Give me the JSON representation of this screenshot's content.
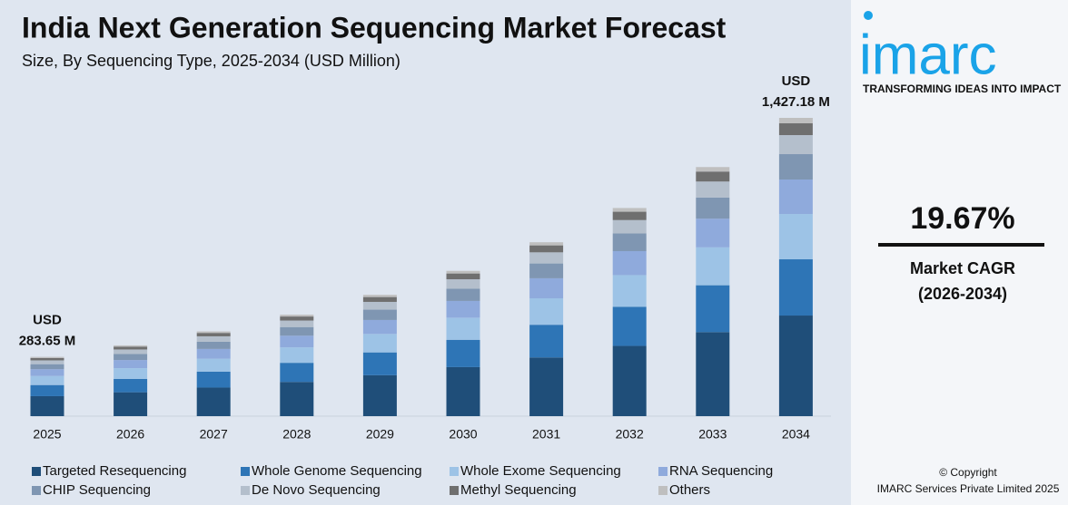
{
  "chart_data": {
    "type": "stacked_bar",
    "title": "India Next Generation Sequencing Market Forecast",
    "subtitle": "Size, By Sequencing Type, 2025-2034 (USD Million)",
    "categories": [
      "2025",
      "2026",
      "2027",
      "2028",
      "2029",
      "2030",
      "2031",
      "2032",
      "2033",
      "2034"
    ],
    "series": [
      {
        "name": "Targeted Resequencing",
        "color": "#1f4e79",
        "values": [
          95.6,
          114.3,
          136.8,
          163.8,
          195.8,
          234.6,
          280.7,
          336.0,
          402.0,
          481.4
        ]
      },
      {
        "name": "Whole Genome Sequencing",
        "color": "#2e75b6",
        "values": [
          53.3,
          63.7,
          76.3,
          91.4,
          109.2,
          130.8,
          156.6,
          187.4,
          224.3,
          269.0
        ]
      },
      {
        "name": "Whole Exome Sequencing",
        "color": "#9dc3e6",
        "values": [
          43.1,
          51.5,
          61.7,
          73.9,
          88.3,
          105.8,
          126.6,
          151.5,
          181.3,
          216.9
        ]
      },
      {
        "name": "RNA Sequencing",
        "color": "#8faadc",
        "values": [
          32.6,
          39.0,
          46.7,
          55.9,
          66.8,
          80.0,
          95.8,
          114.7,
          137.2,
          164.8
        ]
      },
      {
        "name": "CHIP Sequencing",
        "color": "#7f96b2",
        "values": [
          24.1,
          28.8,
          34.5,
          41.3,
          49.4,
          59.2,
          70.8,
          84.7,
          101.4,
          121.5
        ]
      },
      {
        "name": "De Novo Sequencing",
        "color": "#b4bfcc",
        "values": [
          18.2,
          21.7,
          26.0,
          31.1,
          37.2,
          44.5,
          53.3,
          63.8,
          76.4,
          91.1
        ]
      },
      {
        "name": "Methyl Sequencing",
        "color": "#6f6f6f",
        "values": [
          11.3,
          13.6,
          16.2,
          19.4,
          23.2,
          27.8,
          33.3,
          39.9,
          47.7,
          56.4
        ]
      },
      {
        "name": "Others",
        "color": "#bfbfbf",
        "values": [
          5.45,
          6.1,
          7.3,
          8.7,
          10.5,
          12.5,
          15.0,
          17.9,
          21.5,
          26.08
        ]
      }
    ],
    "total_annotations": [
      {
        "unit": "USD",
        "label": "283.65 M"
      },
      {
        "unit": "USD",
        "label": "1,427.18 M"
      }
    ]
  },
  "sidebar": {
    "logo": "imarc",
    "tagline": "TRANSFORMING IDEAS INTO IMPACT",
    "cagr": "19.67%",
    "cagr_label": "Market CAGR",
    "cagr_period": "(2026-2034)",
    "copyright": "© Copyright",
    "company": "IMARC Services Private Limited 2025"
  }
}
